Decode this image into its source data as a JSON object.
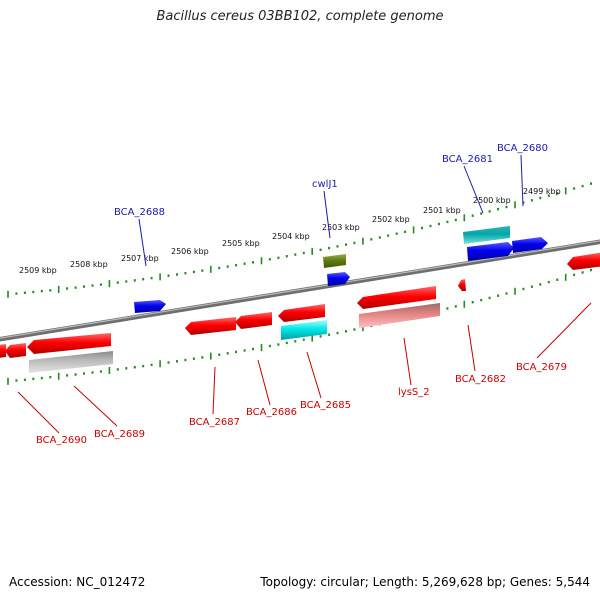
{
  "title": "Bacillus cereus 03BB102, complete genome",
  "footer": {
    "accession": "Accession: NC_012472",
    "summary": "Topology: circular; Length: 5,269,628 bp; Genes: 5,544"
  },
  "colors": {
    "forward_label": "#1a1ab0",
    "reverse_label": "#cc0000",
    "tick": "#228b22",
    "backbone": "#777777"
  },
  "kbp_labels": [
    "2509 kbp",
    "2508 kbp",
    "2507 kbp",
    "2506 kbp",
    "2505 kbp",
    "2504 kbp",
    "2503 kbp",
    "2502 kbp",
    "2501 kbp",
    "2500 kbp",
    "2499 kbp"
  ],
  "gene_labels": {
    "forward": [
      "BCA_2688",
      "cwlJ1",
      "BCA_2681",
      "BCA_2680"
    ],
    "reverse": [
      "BCA_2690",
      "BCA_2689",
      "BCA_2687",
      "BCA_2686",
      "BCA_2685",
      "lysS_2",
      "BCA_2682",
      "BCA_2679"
    ]
  }
}
